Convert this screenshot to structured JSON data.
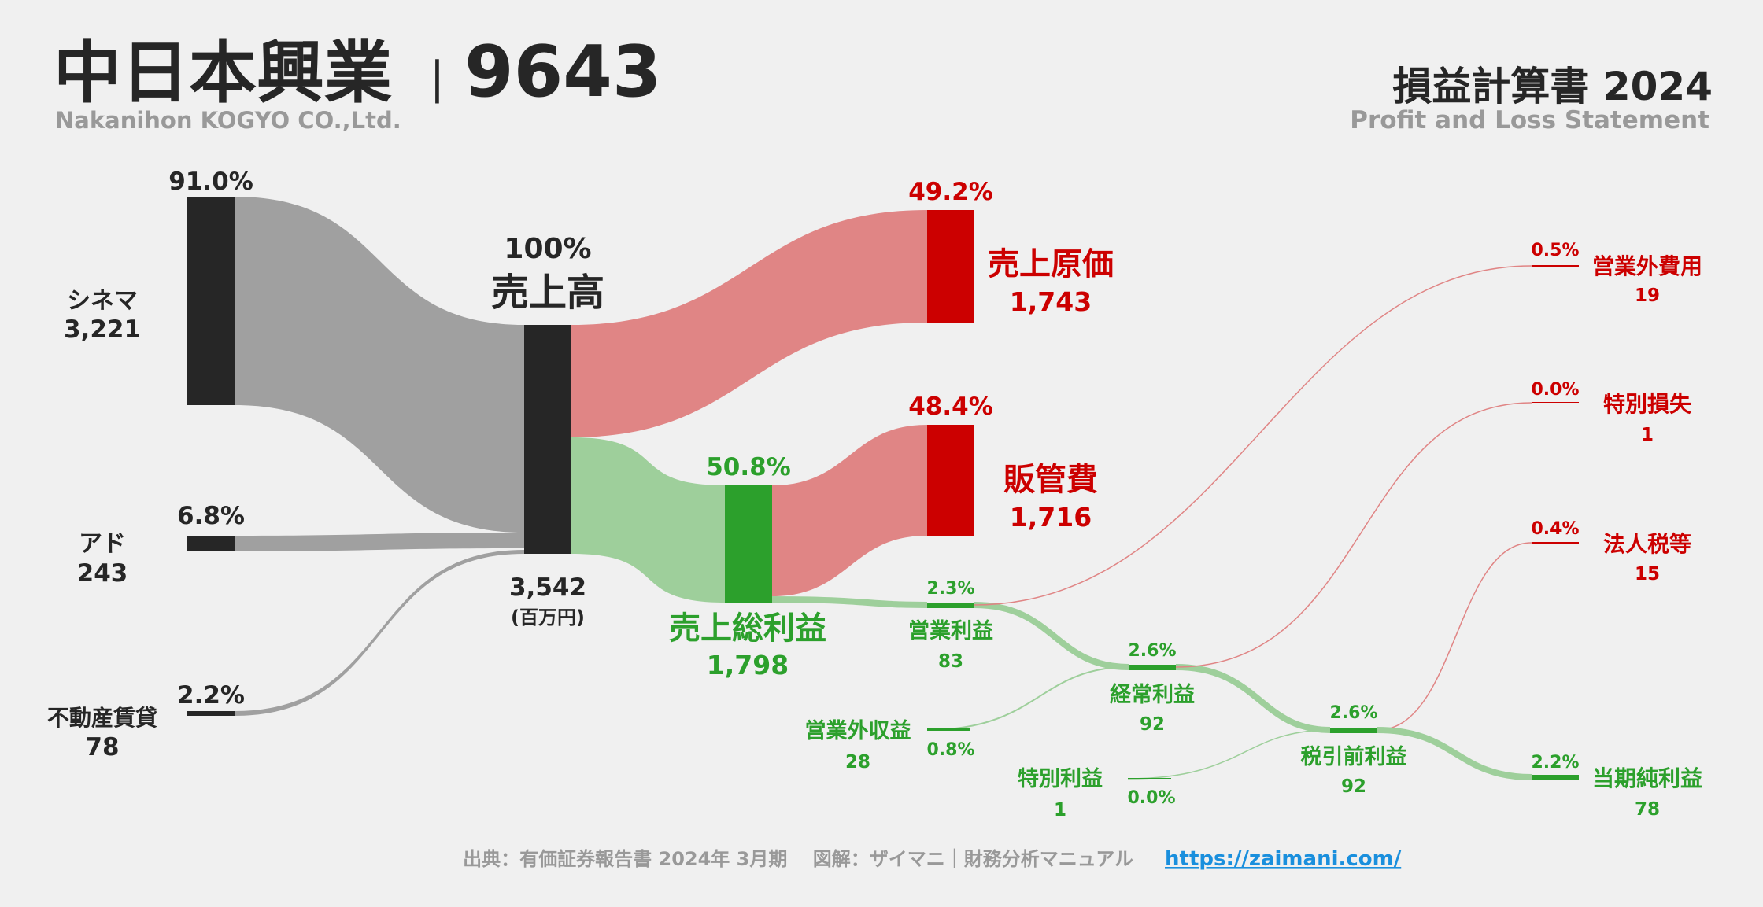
{
  "header": {
    "company": "中日本興業",
    "separator": "|",
    "code": "9643",
    "company_en": "Nakanihon KOGYO CO.,Ltd.",
    "statement": "損益計算書 2024",
    "statement_en": "Profit and Loss Statement"
  },
  "footer": {
    "source": "出典：有価証券報告書 2024年 3月期　 図解：ザイマニ｜財務分析マニュアル",
    "url": "https://zaimani.com/"
  },
  "colors": {
    "dark": "#262626",
    "gray_flow": "#a0a0a0",
    "red": "#cc0000",
    "red_flow": "#e08585",
    "green": "#2ca02c",
    "green_flow": "#9ecf9b",
    "link": "#1a8fdd",
    "muted": "#999999"
  },
  "chart_data": {
    "type": "sankey",
    "unit": "(百万円)",
    "revenue_segments": [
      {
        "name": "シネマ",
        "value": 3221,
        "pct": "91.0%"
      },
      {
        "name": "アド",
        "value": 243,
        "pct": "6.8%"
      },
      {
        "name": "不動産賃貸",
        "value": 78,
        "pct": "2.2%"
      }
    ],
    "nodes": {
      "revenue": {
        "name": "売上高",
        "value": "3,542",
        "pct": "100%"
      },
      "cogs": {
        "name": "売上原価",
        "value": "1,743",
        "pct": "49.2%"
      },
      "gross_profit": {
        "name": "売上総利益",
        "value": "1,798",
        "pct": "50.8%"
      },
      "sga": {
        "name": "販管費",
        "value": "1,716",
        "pct": "48.4%"
      },
      "operating_profit": {
        "name": "営業利益",
        "value": "83",
        "pct": "2.3%"
      },
      "non_op_income": {
        "name": "営業外収益",
        "value": "28",
        "pct": "0.8%"
      },
      "non_op_expense": {
        "name": "営業外費用",
        "value": "19",
        "pct": "0.5%"
      },
      "ordinary_profit": {
        "name": "経常利益",
        "value": "92",
        "pct": "2.6%"
      },
      "extraordinary_income": {
        "name": "特別利益",
        "value": "1",
        "pct": "0.0%"
      },
      "extraordinary_loss": {
        "name": "特別損失",
        "value": "1",
        "pct": "0.0%"
      },
      "pretax_profit": {
        "name": "税引前利益",
        "value": "92",
        "pct": "2.6%"
      },
      "tax": {
        "name": "法人税等",
        "value": "15",
        "pct": "0.4%"
      },
      "net_profit": {
        "name": "当期純利益",
        "value": "78",
        "pct": "2.2%"
      }
    }
  }
}
